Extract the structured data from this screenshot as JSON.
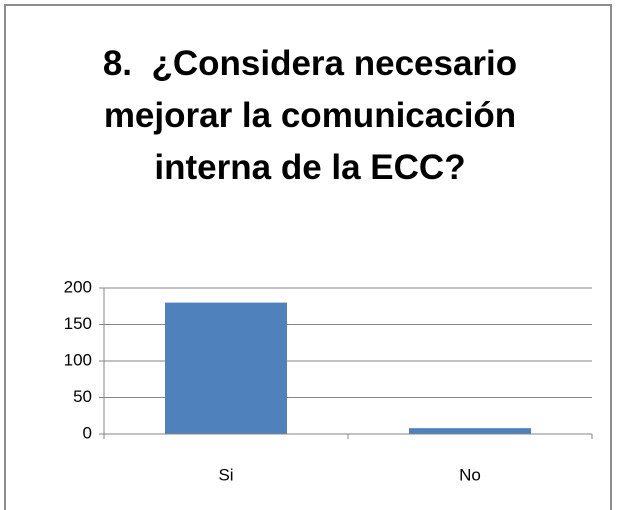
{
  "chart_data": {
    "type": "bar",
    "title": "8.  ¿Considera necesario mejorar la comunicación interna de la ECC?",
    "categories": [
      "Si",
      "No"
    ],
    "values": [
      180,
      8
    ],
    "color": "#4f81bd",
    "ylim": [
      0,
      200
    ],
    "yticks": [
      0,
      50,
      100,
      150,
      200
    ],
    "grid": true
  }
}
